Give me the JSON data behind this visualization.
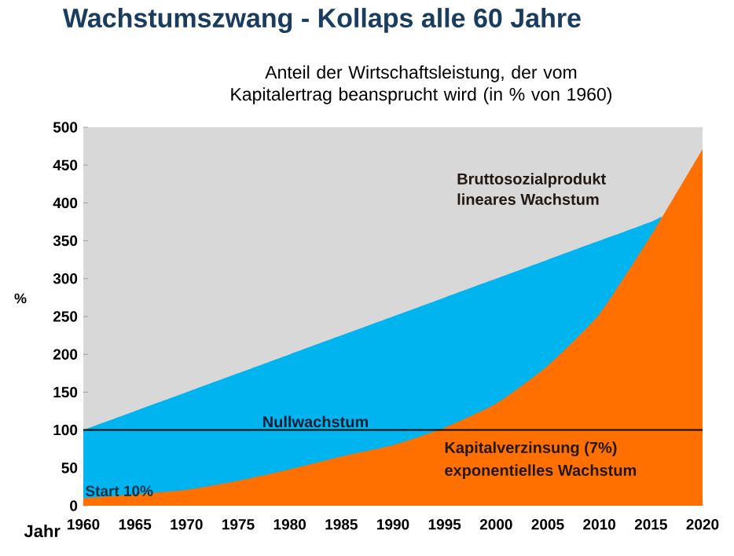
{
  "chart_data": {
    "type": "area",
    "title": "Wachstumszwang - Kollaps alle 60 Jahre",
    "subtitle": "Anteil der Wirtschaftsleistung, der vom Kapitalertrag beansprucht wird (in % von 1960)",
    "xlabel": "Jahr",
    "ylabel": "%",
    "xlim": [
      1960,
      2020
    ],
    "xticks": [
      1960,
      1965,
      1970,
      1975,
      1980,
      1985,
      1990,
      1995,
      2000,
      2005,
      2010,
      2015,
      2020
    ],
    "ylim": [
      0,
      500
    ],
    "yticks": [
      0,
      50,
      100,
      150,
      200,
      250,
      300,
      350,
      400,
      450,
      500
    ],
    "series": [
      {
        "color": "#00b4f0",
        "x": [
          1960,
          1965,
          1970,
          1975,
          1980,
          1985,
          1990,
          1995,
          2000,
          2005,
          2010,
          2015,
          2016
        ],
        "values": [
          100,
          125,
          150,
          175,
          200,
          225,
          250,
          275,
          300,
          325,
          350,
          375,
          382
        ]
      },
      {
        "color": "#ff7000",
        "x": [
          1960,
          1965,
          1970,
          1975,
          1980,
          1985,
          1990,
          1995,
          2000,
          2005,
          2010,
          2015,
          2020
        ],
        "values": [
          10,
          15,
          21,
          33,
          48,
          65,
          80,
          103,
          135,
          185,
          253,
          357,
          471
        ]
      }
    ],
    "ref_lines": [
      {
        "axis": "y",
        "value": 100,
        "label": "Nullwachstum",
        "color": "#000000"
      }
    ],
    "annotations": [
      {
        "text": "Start 10%",
        "x": 1960,
        "y": 10
      },
      "Bruttosozialprodukt",
      "lineares Wachstum",
      "Kapitalverzinsung (7%)",
      "exponentielles Wachstum"
    ],
    "grid": false
  }
}
